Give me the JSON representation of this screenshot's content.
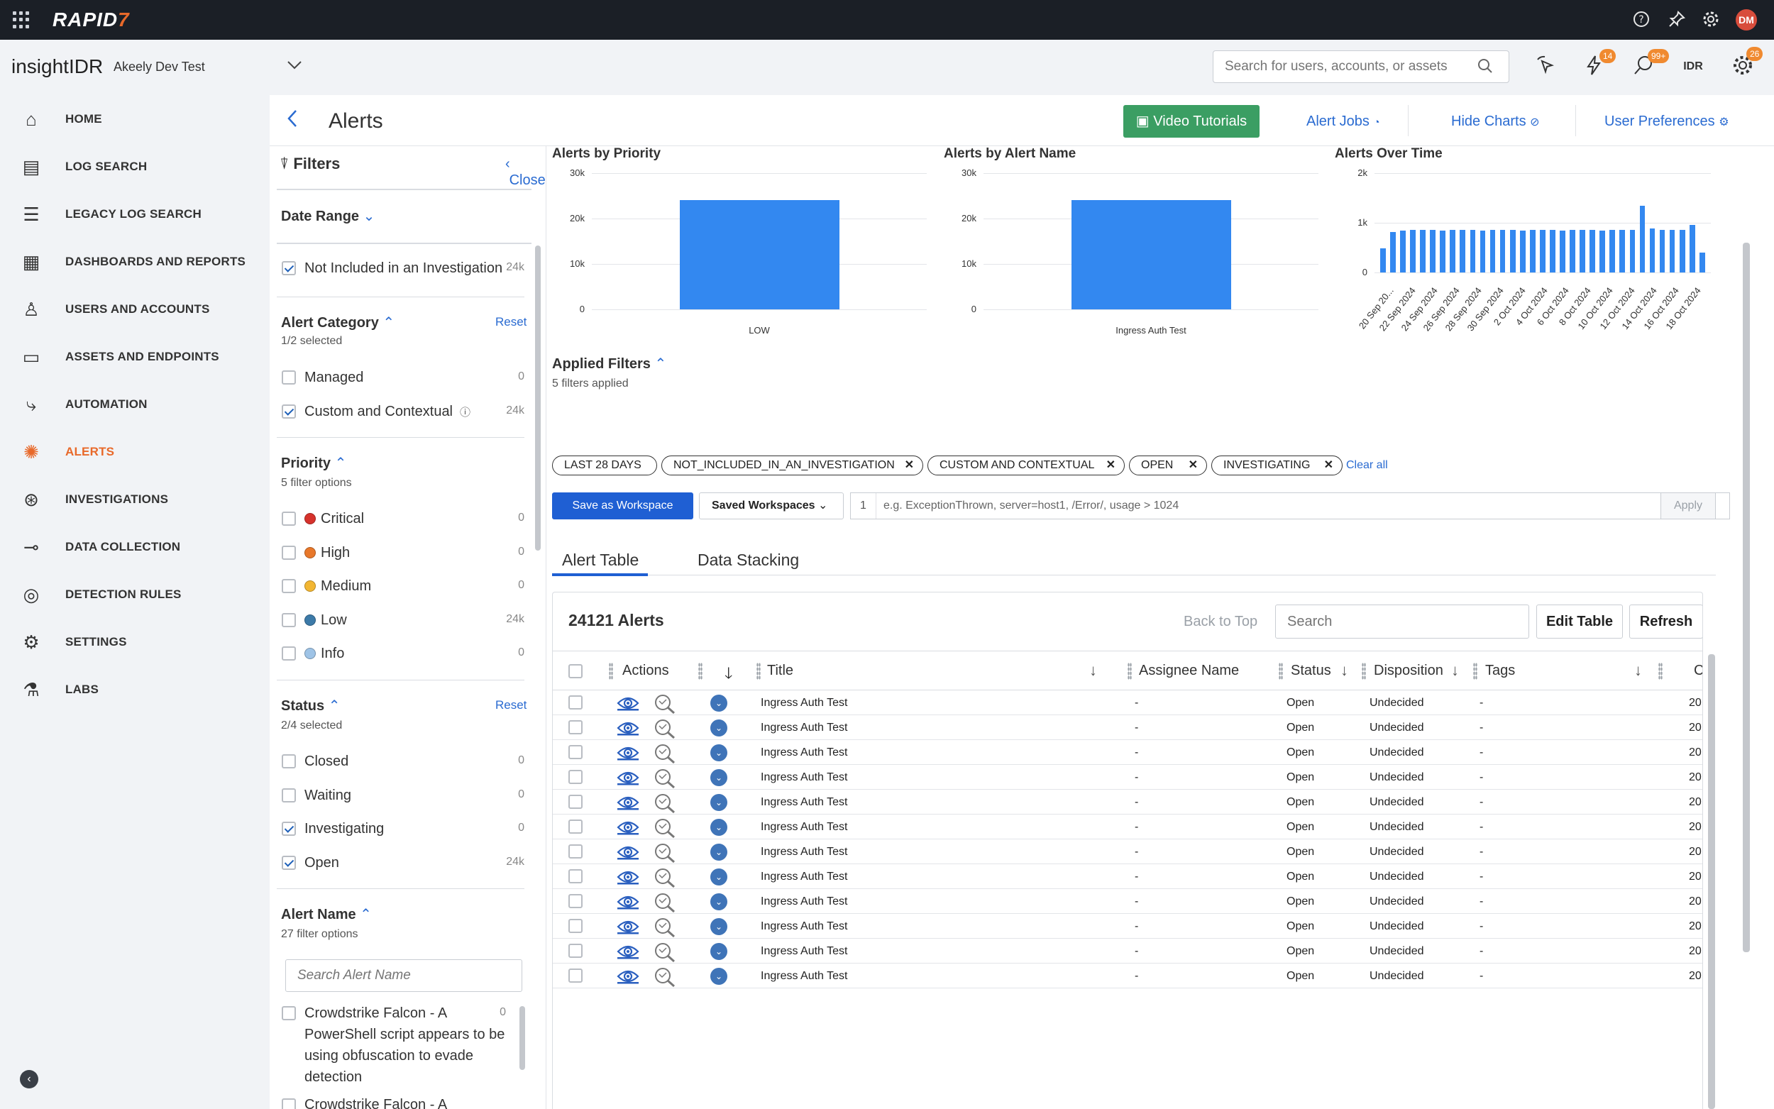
{
  "topbar": {
    "brand": "RAPID",
    "brand_accent": "7",
    "avatar": "DM"
  },
  "header": {
    "product": "insightIDR",
    "org": "Akeely Dev Test",
    "search_placeholder": "Search for users, accounts, or assets",
    "badges": {
      "alerts": "14",
      "chat": "99+",
      "settings": "26"
    },
    "idr_label": "IDR"
  },
  "nav": {
    "items": [
      {
        "label": "HOME",
        "icon": "home-icon"
      },
      {
        "label": "LOG SEARCH",
        "icon": "log-search-icon"
      },
      {
        "label": "LEGACY LOG SEARCH",
        "icon": "legacy-log-search-icon"
      },
      {
        "label": "DASHBOARDS AND REPORTS",
        "icon": "dashboard-icon"
      },
      {
        "label": "USERS AND ACCOUNTS",
        "icon": "user-icon"
      },
      {
        "label": "ASSETS AND ENDPOINTS",
        "icon": "monitor-icon"
      },
      {
        "label": "AUTOMATION",
        "icon": "automation-icon"
      },
      {
        "label": "ALERTS",
        "icon": "alerts-icon",
        "active": true
      },
      {
        "label": "INVESTIGATIONS",
        "icon": "investigations-icon"
      },
      {
        "label": "DATA COLLECTION",
        "icon": "data-collection-icon"
      },
      {
        "label": "DETECTION RULES",
        "icon": "detection-rules-icon"
      },
      {
        "label": "SETTINGS",
        "icon": "gear-icon"
      },
      {
        "label": "LABS",
        "icon": "flask-icon"
      }
    ]
  },
  "page": {
    "title": "Alerts",
    "video_tutorials": "Video Tutorials",
    "alert_jobs": "Alert Jobs",
    "hide_charts": "Hide Charts",
    "user_preferences": "User Preferences"
  },
  "filters": {
    "title": "Filters",
    "close": "Close",
    "date_range": "Date Range",
    "not_included": {
      "label": "Not Included in an Investigation",
      "count": "24k",
      "checked": true
    },
    "category": {
      "title": "Alert Category",
      "sub": "1/2 selected",
      "reset": "Reset",
      "items": [
        {
          "label": "Managed",
          "count": "0",
          "checked": false
        },
        {
          "label": "Custom and Contextual",
          "count": "24k",
          "checked": true
        }
      ]
    },
    "priority": {
      "title": "Priority",
      "sub": "5 filter options",
      "items": [
        {
          "label": "Critical",
          "count": "0",
          "color": "#d6322c"
        },
        {
          "label": "High",
          "count": "0",
          "color": "#e8782a"
        },
        {
          "label": "Medium",
          "count": "0",
          "color": "#f2b632"
        },
        {
          "label": "Low",
          "count": "24k",
          "color": "#3c7aa8"
        },
        {
          "label": "Info",
          "count": "0",
          "color": "#9ec3e6"
        }
      ]
    },
    "status": {
      "title": "Status",
      "sub": "2/4 selected",
      "reset": "Reset",
      "items": [
        {
          "label": "Closed",
          "count": "0",
          "checked": false
        },
        {
          "label": "Waiting",
          "count": "0",
          "checked": false
        },
        {
          "label": "Investigating",
          "count": "0",
          "checked": true
        },
        {
          "label": "Open",
          "count": "24k",
          "checked": true
        }
      ]
    },
    "alert_name": {
      "title": "Alert Name",
      "sub": "27 filter options",
      "search_placeholder": "Search Alert Name",
      "first_item": "Crowdstrike Falcon - A PowerShell script appears to be using obfuscation to evade detection",
      "first_count": "0",
      "second_item": "Crowdstrike Falcon - A"
    }
  },
  "charts": {
    "priority": {
      "title": "Alerts by Priority"
    },
    "alert_name": {
      "title": "Alerts by Alert Name"
    },
    "over_time": {
      "title": "Alerts Over Time"
    }
  },
  "chart_data": [
    {
      "type": "bar",
      "title": "Alerts by Priority",
      "categories": [
        "LOW"
      ],
      "values": [
        24121
      ],
      "yticks": [
        "0",
        "10k",
        "20k",
        "30k"
      ],
      "ylim": [
        0,
        30000
      ]
    },
    {
      "type": "bar",
      "title": "Alerts by Alert Name",
      "categories": [
        "Ingress Auth Test"
      ],
      "values": [
        24121
      ],
      "yticks": [
        "0",
        "10k",
        "20k",
        "30k"
      ],
      "ylim": [
        0,
        30000
      ]
    },
    {
      "type": "bar",
      "title": "Alerts Over Time",
      "yticks": [
        "0",
        "1k",
        "2k"
      ],
      "ylim": [
        0,
        2000
      ],
      "xticks": [
        "20 Sep 20...",
        "22 Sep 2024",
        "24 Sep 2024",
        "26 Sep 2024",
        "28 Sep 2024",
        "30 Sep 2024",
        "2 Oct 2024",
        "4 Oct 2024",
        "6 Oct 2024",
        "8 Oct 2024",
        "10 Oct 2024",
        "12 Oct 2024",
        "14 Oct 2024",
        "16 Oct 2024",
        "18 Oct 2024"
      ],
      "values": [
        480,
        820,
        850,
        860,
        855,
        860,
        850,
        860,
        855,
        860,
        850,
        860,
        855,
        860,
        850,
        860,
        855,
        860,
        850,
        860,
        855,
        860,
        850,
        860,
        855,
        860,
        1350,
        880,
        860,
        855,
        860,
        960,
        400
      ]
    }
  ],
  "applied": {
    "title": "Applied Filters",
    "sub": "5 filters applied",
    "clear_all": "Clear all",
    "chips": [
      "LAST 28 DAYS",
      "NOT_INCLUDED_IN_AN_INVESTIGATION",
      "CUSTOM AND CONTEXTUAL",
      "OPEN",
      "INVESTIGATING"
    ]
  },
  "query": {
    "save_ws": "Save as Workspace",
    "saved_ws": "Saved Workspaces",
    "line": "1",
    "placeholder": "e.g. ExceptionThrown, server=host1, /Error/, usage > 1024",
    "apply": "Apply"
  },
  "tabs": [
    "Alert Table",
    "Data Stacking"
  ],
  "table": {
    "count": "24121 Alerts",
    "back_to_top": "Back to Top",
    "search_placeholder": "Search",
    "edit_table": "Edit Table",
    "refresh": "Refresh",
    "columns": [
      "Actions",
      "Title",
      "Assignee Name",
      "Status",
      "Disposition",
      "Tags",
      "C"
    ],
    "rows": [
      {
        "title": "Ingress Auth Test",
        "assignee": "-",
        "status": "Open",
        "disposition": "Undecided",
        "tags": "-",
        "created": "20"
      },
      {
        "title": "Ingress Auth Test",
        "assignee": "-",
        "status": "Open",
        "disposition": "Undecided",
        "tags": "-",
        "created": "20"
      },
      {
        "title": "Ingress Auth Test",
        "assignee": "-",
        "status": "Open",
        "disposition": "Undecided",
        "tags": "-",
        "created": "20"
      },
      {
        "title": "Ingress Auth Test",
        "assignee": "-",
        "status": "Open",
        "disposition": "Undecided",
        "tags": "-",
        "created": "20"
      },
      {
        "title": "Ingress Auth Test",
        "assignee": "-",
        "status": "Open",
        "disposition": "Undecided",
        "tags": "-",
        "created": "20"
      },
      {
        "title": "Ingress Auth Test",
        "assignee": "-",
        "status": "Open",
        "disposition": "Undecided",
        "tags": "-",
        "created": "20"
      },
      {
        "title": "Ingress Auth Test",
        "assignee": "-",
        "status": "Open",
        "disposition": "Undecided",
        "tags": "-",
        "created": "20"
      },
      {
        "title": "Ingress Auth Test",
        "assignee": "-",
        "status": "Open",
        "disposition": "Undecided",
        "tags": "-",
        "created": "20"
      },
      {
        "title": "Ingress Auth Test",
        "assignee": "-",
        "status": "Open",
        "disposition": "Undecided",
        "tags": "-",
        "created": "20"
      },
      {
        "title": "Ingress Auth Test",
        "assignee": "-",
        "status": "Open",
        "disposition": "Undecided",
        "tags": "-",
        "created": "20"
      },
      {
        "title": "Ingress Auth Test",
        "assignee": "-",
        "status": "Open",
        "disposition": "Undecided",
        "tags": "-",
        "created": "20"
      },
      {
        "title": "Ingress Auth Test",
        "assignee": "-",
        "status": "Open",
        "disposition": "Undecided",
        "tags": "-",
        "created": "20"
      }
    ]
  }
}
